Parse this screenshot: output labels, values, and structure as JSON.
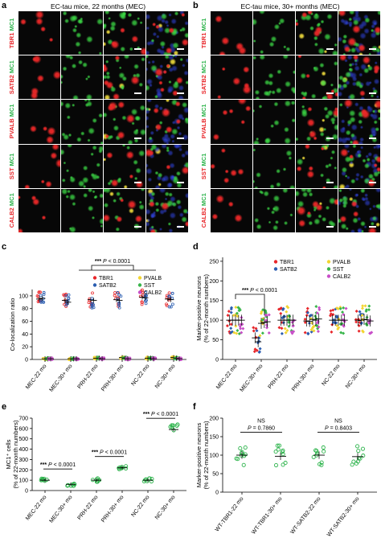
{
  "panel_a": {
    "letter": "a",
    "title": "EC-tau mice, 22 months (MEC)",
    "rows": [
      {
        "red": "TBR1",
        "green": "MC1"
      },
      {
        "red": "SATB2",
        "green": "MC1"
      },
      {
        "red": "PVALB",
        "green": "MC1"
      },
      {
        "red": "SST",
        "green": "MC1"
      },
      {
        "red": "CALB2",
        "green": "MC1"
      }
    ]
  },
  "panel_b": {
    "letter": "b",
    "title": "EC-tau mice, 30+ months (MEC)",
    "rows": [
      {
        "red": "TBR1",
        "green": "MC1"
      },
      {
        "red": "SATB2",
        "green": "MC1"
      },
      {
        "red": "PVALB",
        "green": "MC1"
      },
      {
        "red": "SST",
        "green": "MC1"
      },
      {
        "red": "CALB2",
        "green": "MC1"
      }
    ]
  },
  "colors": {
    "TBR1": "#e8262a",
    "SATB2": "#2a5db0",
    "PVALB": "#f2d531",
    "SST": "#38b54a",
    "CALB2": "#c84fc8",
    "MC1": "#2bb34a"
  },
  "chart_data": [
    {
      "panel": "c",
      "type": "scatter",
      "ylabel": "Co-localization ratio",
      "yticks": [
        "0",
        "20",
        "40",
        "60",
        "80",
        "100"
      ],
      "ylim": [
        0,
        110
      ],
      "categories": [
        "MEC-22 mo",
        "MEC-30+ mo",
        "PRH-22 mo",
        "PRH-30+ mo",
        "NC-22 mo",
        "NC-30+ mo"
      ],
      "legend": [
        "TBR1",
        "SATB2",
        "PVALB",
        "SST",
        "CALB2"
      ],
      "annotation": {
        "stars": "***",
        "p": "P",
        "ptext": "< 0.0001"
      },
      "series": [
        {
          "name": "TBR1",
          "means": [
            95,
            93,
            94,
            94,
            98,
            95
          ]
        },
        {
          "name": "SATB2",
          "means": [
            96,
            90,
            93,
            93,
            97,
            94
          ]
        },
        {
          "name": "PVALB",
          "means": [
            1,
            1,
            2,
            3,
            2,
            3
          ]
        },
        {
          "name": "SST",
          "means": [
            1,
            1,
            2,
            2,
            2,
            2
          ]
        },
        {
          "name": "CALB2",
          "means": [
            1,
            1,
            1,
            1,
            1,
            1
          ]
        }
      ]
    },
    {
      "panel": "d",
      "type": "scatter",
      "ylabel": "Marker-positive neurons",
      "ylabel2": "(% of 22-month numbers)",
      "yticks": [
        "0",
        "50",
        "100",
        "150",
        "200",
        "250"
      ],
      "ylim": [
        0,
        260
      ],
      "categories": [
        "MEC-22 mo",
        "MEC-30+ mo",
        "PRH-22 mo",
        "PRH-30+ mo",
        "NC-22 mo",
        "NC-30+ mo"
      ],
      "legend": [
        "TBR1",
        "SATB2",
        "PVALB",
        "SST",
        "CALB2"
      ],
      "annotation": {
        "stars": "***",
        "p": "P",
        "ptext": "< 0.0001"
      },
      "series": [
        {
          "name": "TBR1",
          "means": [
            100,
            55,
            100,
            98,
            100,
            100
          ]
        },
        {
          "name": "SATB2",
          "means": [
            100,
            45,
            100,
            97,
            100,
            99
          ]
        },
        {
          "name": "PVALB",
          "means": [
            100,
            92,
            100,
            102,
            100,
            102
          ]
        },
        {
          "name": "SST",
          "means": [
            100,
            94,
            100,
            100,
            100,
            101
          ]
        },
        {
          "name": "CALB2",
          "means": [
            100,
            96,
            100,
            103,
            100,
            98
          ]
        }
      ]
    },
    {
      "panel": "e",
      "type": "scatter",
      "ylabel": "MC1⁺ cells",
      "ylabel2": "(% of 22-month numbers)",
      "yticks": [
        "0",
        "100",
        "200",
        "300",
        "400",
        "500",
        "600",
        "700"
      ],
      "ylim": [
        0,
        700
      ],
      "categories": [
        "MEC-22 mo",
        "MEC-30+ mo",
        "PRH-22 mo",
        "PRH-30+ mo",
        "NC-22 mo",
        "NC-30+ mo"
      ],
      "values": [
        100,
        60,
        100,
        220,
        100,
        590
      ],
      "comparisons": [
        {
          "stars": "***",
          "p": "P",
          "ptext": "< 0.0001"
        },
        {
          "stars": "***",
          "p": "P",
          "ptext": "< 0.0001"
        },
        {
          "stars": "***",
          "p": "P",
          "ptext": "< 0.0001"
        }
      ]
    },
    {
      "panel": "f",
      "type": "scatter",
      "ylabel": "Marker-positive neurons",
      "ylabel2": "(% of 22-month numbers)",
      "yticks": [
        "0",
        "50",
        "100",
        "150",
        "200"
      ],
      "ylim": [
        0,
        200
      ],
      "categories": [
        "WT-TBR1-22 mo",
        "WT-TBR1-30+ mo",
        "WT-SATB2-22 mo",
        "WT-SATB2-30+ mo"
      ],
      "values": [
        100,
        97,
        100,
        96
      ],
      "comparisons": [
        {
          "stars": "NS",
          "p": "P",
          "ptext": "= 0.7860"
        },
        {
          "stars": "NS",
          "p": "P",
          "ptext": "= 0.8403"
        }
      ]
    }
  ],
  "panel_letters": {
    "c": "c",
    "d": "d",
    "e": "e",
    "f": "f"
  }
}
